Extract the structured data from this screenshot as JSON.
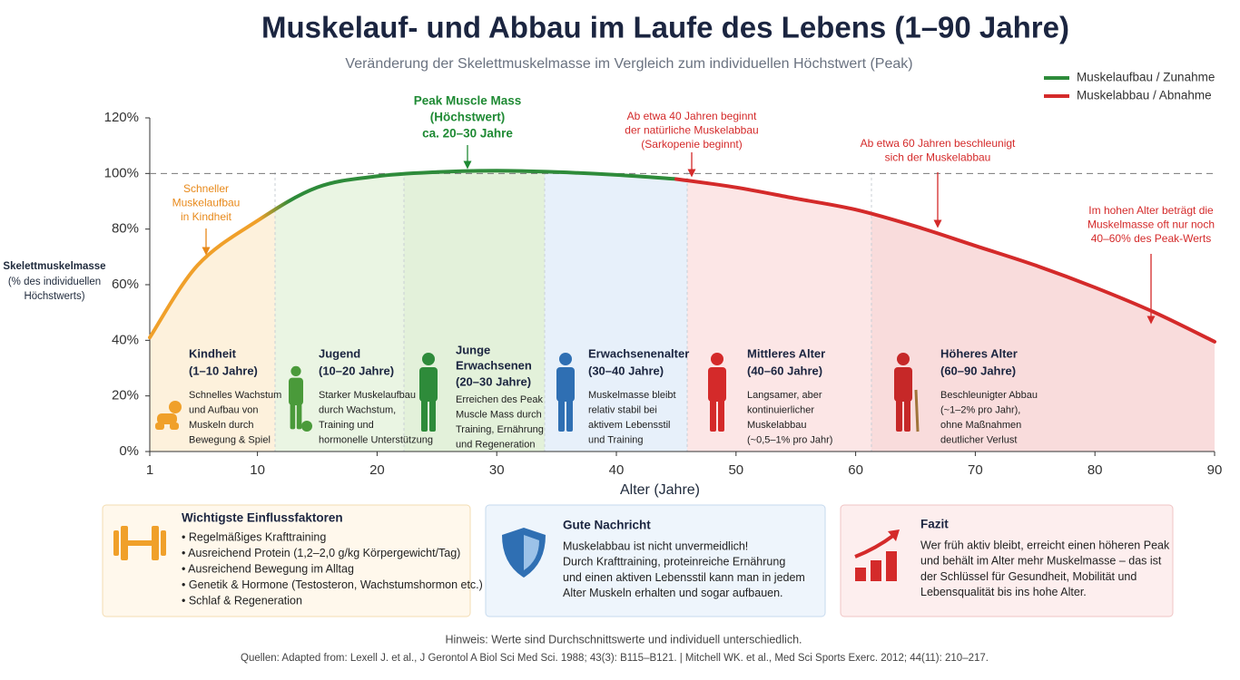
{
  "chart_data": {
    "type": "line",
    "title": "Muskelauf- und Abbau im Laufe des Lebens (1–90 Jahre)",
    "subtitle": "Veränderung der Skelettmuskelmasse im Vergleich zum individuellen Höchstwert (Peak)",
    "x_label": "Alter (Jahre)",
    "y_label": [
      "Skelettmuskelmasse",
      "(% des individuellen",
      "Höchstwerts)"
    ],
    "xlim": [
      1,
      90
    ],
    "xticks": [
      1,
      10,
      20,
      30,
      40,
      50,
      60,
      70,
      80,
      90
    ],
    "ylim": [
      0,
      120
    ],
    "yticks": [
      {
        "value": 0,
        "label": "0%"
      },
      {
        "value": 20,
        "label": "20%"
      },
      {
        "value": 40,
        "label": "40%"
      },
      {
        "value": 60,
        "label": "60%"
      },
      {
        "value": 80,
        "label": "80%"
      },
      {
        "value": 100,
        "label": "100%"
      },
      {
        "value": 120,
        "label": "120%"
      }
    ],
    "reference_line": 100,
    "legend_position": "top-right",
    "series": [
      {
        "name": "Muskelaufbau / Zunahme",
        "color": "#2e8b3a",
        "gradient_from": "#f0a02a",
        "x": [
          1,
          5,
          10,
          15,
          20,
          25,
          30,
          35,
          40,
          45
        ],
        "values": [
          41,
          67,
          83,
          95,
          99,
          100.5,
          101,
          100.5,
          99.5,
          98
        ]
      },
      {
        "name": "Muskelabbau / Abnahme",
        "color": "#d42a2a",
        "x": [
          45,
          50,
          55,
          60,
          65,
          70,
          75,
          80,
          85,
          90
        ],
        "values": [
          98,
          95,
          91,
          87,
          81,
          74,
          67,
          59,
          50,
          39.5
        ]
      }
    ],
    "annotations": [
      {
        "lines": [
          "Schneller",
          "Muskelaufbau",
          "in Kindheit"
        ],
        "color": "#e8891a"
      },
      {
        "lines": [
          "Peak Muscle Mass",
          "(Höchstwert)",
          "ca. 20–30 Jahre"
        ],
        "color": "#1f8a34"
      },
      {
        "lines": [
          "Ab etwa 40 Jahren beginnt",
          "der natürliche Muskelabbau",
          "(Sarkopenie beginnt)"
        ],
        "color": "#d42a2a"
      },
      {
        "lines": [
          "Ab etwa 60 Jahren beschleunigt",
          "sich der Muskelabbau"
        ],
        "color": "#d42a2a"
      },
      {
        "lines": [
          "Im hohen Alter beträgt die",
          "Muskelmasse oft nur noch",
          "40–60% des Peak-Werts"
        ],
        "color": "#d42a2a"
      }
    ],
    "phases": [
      {
        "title": [
          "Kindheit"
        ],
        "range": "(1–10 Jahre)",
        "text": [
          "Schnelles Wachstum",
          "und Aufbau von",
          "Muskeln durch",
          "Bewegung & Spiel"
        ]
      },
      {
        "title": [
          "Jugend"
        ],
        "range": "(10–20 Jahre)",
        "text": [
          "Starker Muskelaufbau",
          "durch Wachstum,",
          "Training und",
          "hormonelle Unterstützung"
        ]
      },
      {
        "title": [
          "Junge",
          "Erwachsenen"
        ],
        "range": "(20–30 Jahre)",
        "text": [
          "Erreichen des Peak",
          "Muscle Mass durch",
          "Training, Ernährung",
          "und Regeneration"
        ]
      },
      {
        "title": [
          "Erwachsenenalter"
        ],
        "range": "(30–40 Jahre)",
        "text": [
          "Muskelmasse bleibt",
          "relativ stabil bei",
          "aktivem Lebensstil",
          "und Training"
        ]
      },
      {
        "title": [
          "Mittleres Alter"
        ],
        "range": "(40–60 Jahre)",
        "text": [
          "Langsamer, aber",
          "kontinuierlicher",
          "Muskelabbau",
          "(~0,5–1% pro Jahr)"
        ]
      },
      {
        "title": [
          "Höheres Alter"
        ],
        "range": "(60–90 Jahre)",
        "text": [
          "Beschleunigter Abbau",
          "(~1–2% pro Jahr),",
          "ohne Maßnahmen",
          "deutlicher Verlust"
        ]
      }
    ]
  },
  "cards": [
    {
      "title": "Wichtigste Einflussfaktoren",
      "lines": [
        "• Regelmäßiges Krafttraining",
        "• Ausreichend Protein (1,2–2,0 g/kg Körpergewicht/Tag)",
        "• Ausreichend Bewegung im Alltag",
        "• Genetik & Hormone (Testosteron, Wachstumshormon etc.)",
        "• Schlaf & Regeneration"
      ]
    },
    {
      "title": "Gute Nachricht",
      "lines": [
        "Muskelabbau ist nicht unvermeidlich!",
        "Durch Krafttraining, proteinreiche Ernährung",
        "und einen aktiven Lebensstil kann man in jedem",
        "Alter Muskeln erhalten und sogar aufbauen."
      ]
    },
    {
      "title": "Fazit",
      "lines": [
        "Wer früh aktiv bleibt, erreicht einen höheren Peak",
        "und behält im Alter mehr Muskelmasse – das ist",
        "der Schlüssel für Gesundheit, Mobilität und",
        "Lebensqualität bis ins hohe Alter."
      ]
    }
  ],
  "footer": {
    "note": "Hinweis: Werte sind Durchschnittswerte und individuell unterschiedlich.",
    "sources": "Quellen: Adapted from: Lexell J. et al., J Gerontol A Biol Sci Med Sci. 1988; 43(3): B115–B121.  |  Mitchell WK. et al., Med Sci Sports Exerc. 2012; 44(11): 210–217."
  }
}
